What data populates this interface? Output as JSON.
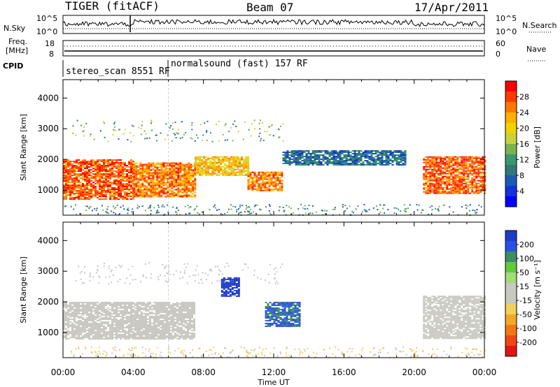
{
  "header": {
    "radar": "TIGER (fitACF)",
    "beam": "Beam 07",
    "date": "17/Apr/2011"
  },
  "top_panels": {
    "nsky_label": "N.Sky",
    "nsky_ticks": [
      "10^5",
      "10^0"
    ],
    "nsearch_label": "N.Search",
    "nsearch_ticks": [
      "10^5",
      "10^0"
    ],
    "freq_label_1": "Freq.",
    "freq_label_2": "[MHz]",
    "freq_ticks": [
      "18",
      "8"
    ],
    "nave_label": "Nave",
    "nave_ticks": [
      "60",
      "0"
    ],
    "cpid_label": "CPID",
    "cpid_segments": [
      "stereo_scan 8551 RF",
      "normalsound (fast) 157 RF"
    ]
  },
  "panels": {
    "ylabel": "Slant Range [km]",
    "yticks": [
      "4000",
      "3000",
      "2000",
      "1000"
    ],
    "xticks": [
      "00:00",
      "04:00",
      "08:00",
      "12:00",
      "16:00",
      "20:00",
      "00:00"
    ],
    "xlabel": "Time UT"
  },
  "power_bar": {
    "label": "Power [dB]",
    "ticks": [
      "28",
      "24",
      "20",
      "16",
      "12",
      "8",
      "4"
    ],
    "colors": [
      "#ff0000",
      "#ff3a00",
      "#ff7800",
      "#ffb000",
      "#f0d200",
      "#c8d23c",
      "#78b450",
      "#3c966e",
      "#327878",
      "#1e5ab4",
      "#1432dc",
      "#0000ff"
    ]
  },
  "velocity_bar": {
    "label": "Velocity [m s⁻¹]",
    "ticks": [
      "200",
      "100",
      "50",
      "15",
      "-15",
      "-50",
      "-100",
      "-200"
    ],
    "colors": [
      "#1e3cc8",
      "#2850e6",
      "#3c8c64",
      "#64c83c",
      "#a0dc78",
      "#c8c8c0",
      "#c8c8c0",
      "#f0d25a",
      "#f0aa28",
      "#f07814",
      "#f04614",
      "#e61414"
    ]
  },
  "chart_data": [
    {
      "type": "heatmap",
      "title": "Power",
      "xlabel": "Time UT",
      "ylabel": "Slant Range [km]",
      "xlim": [
        "00:00",
        "24:00"
      ],
      "ylim": [
        180,
        4600
      ],
      "colorbar": {
        "label": "Power [dB]",
        "range": [
          0,
          32
        ]
      },
      "regions": [
        {
          "t_start": 0.0,
          "t_end": 4.0,
          "r_low": 700,
          "r_high": 2000,
          "value_db": 28
        },
        {
          "t_start": 4.0,
          "t_end": 7.5,
          "r_low": 800,
          "r_high": 1900,
          "value_db": 26
        },
        {
          "t_start": 7.5,
          "t_end": 10.5,
          "r_low": 1500,
          "r_high": 2100,
          "value_db": 22
        },
        {
          "t_start": 10.5,
          "t_end": 12.5,
          "r_low": 1000,
          "r_high": 1600,
          "value_db": 26
        },
        {
          "t_start": 12.5,
          "t_end": 19.5,
          "r_low": 1800,
          "r_high": 2300,
          "value_db": 8
        },
        {
          "t_start": 20.5,
          "t_end": 24.0,
          "r_low": 900,
          "r_high": 2100,
          "value_db": 28
        }
      ]
    },
    {
      "type": "heatmap",
      "title": "Velocity",
      "xlabel": "Time UT",
      "ylabel": "Slant Range [km]",
      "xlim": [
        "00:00",
        "24:00"
      ],
      "ylim": [
        180,
        4600
      ],
      "colorbar": {
        "label": "Velocity [m s⁻¹]",
        "range": [
          -200,
          200
        ]
      },
      "regions": [
        {
          "t_start": 0.0,
          "t_end": 7.5,
          "r_low": 800,
          "r_high": 2000,
          "value_ms": 0
        },
        {
          "t_start": 9.0,
          "t_end": 10.0,
          "r_low": 2200,
          "r_high": 2800,
          "value_ms": 200
        },
        {
          "t_start": 11.5,
          "t_end": 13.5,
          "r_low": 1200,
          "r_high": 2000,
          "value_ms": 150
        },
        {
          "t_start": 20.5,
          "t_end": 24.0,
          "r_low": 800,
          "r_high": 2200,
          "value_ms": 0
        }
      ]
    }
  ]
}
